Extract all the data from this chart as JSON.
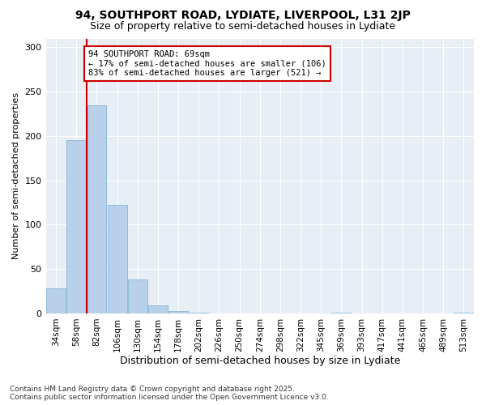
{
  "title": "94, SOUTHPORT ROAD, LYDIATE, LIVERPOOL, L31 2JP",
  "subtitle": "Size of property relative to semi-detached houses in Lydiate",
  "xlabel": "Distribution of semi-detached houses by size in Lydiate",
  "ylabel": "Number of semi-detached properties",
  "categories": [
    "34sqm",
    "58sqm",
    "82sqm",
    "106sqm",
    "130sqm",
    "154sqm",
    "178sqm",
    "202sqm",
    "226sqm",
    "250sqm",
    "274sqm",
    "298sqm",
    "322sqm",
    "345sqm",
    "369sqm",
    "393sqm",
    "417sqm",
    "441sqm",
    "465sqm",
    "489sqm",
    "513sqm"
  ],
  "values": [
    28,
    195,
    235,
    122,
    38,
    9,
    3,
    1,
    0,
    0,
    0,
    0,
    0,
    0,
    1,
    0,
    0,
    0,
    0,
    0,
    1
  ],
  "bar_color": "#b8d0ea",
  "bar_edge_color": "#7aadd4",
  "property_line_x": 1.5,
  "annotation_text": "94 SOUTHPORT ROAD: 69sqm\n← 17% of semi-detached houses are smaller (106)\n83% of semi-detached houses are larger (521) →",
  "annotation_box_color": "#ffffff",
  "annotation_box_edge": "#cc0000",
  "line_color": "#cc0000",
  "ylim": [
    0,
    310
  ],
  "yticks": [
    0,
    50,
    100,
    150,
    200,
    250,
    300
  ],
  "background_color": "#e8eef5",
  "grid_color": "#ffffff",
  "footer_line1": "Contains HM Land Registry data © Crown copyright and database right 2025.",
  "footer_line2": "Contains public sector information licensed under the Open Government Licence v3.0."
}
